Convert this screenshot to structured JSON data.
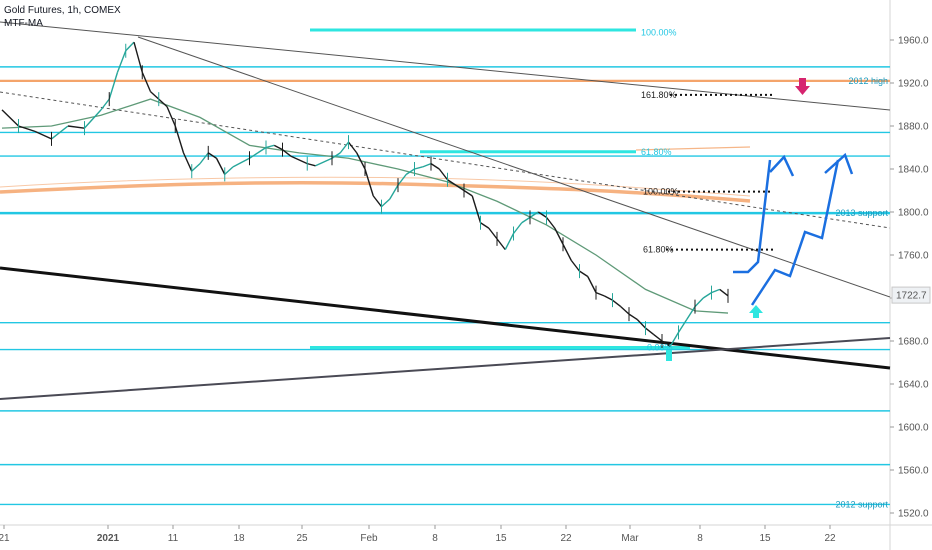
{
  "header": {
    "title": "Gold Futures, 1h, COMEX",
    "indicator": "MTF-MA"
  },
  "chart_data": {
    "type": "line",
    "title": "Gold Futures, 1h, COMEX",
    "ylim": [
      1504,
      1990
    ],
    "y_ticks": [
      1960,
      1920,
      1880,
      1840,
      1800,
      1760,
      1720,
      1680,
      1640,
      1600,
      1560,
      1520
    ],
    "x_ticks": [
      "21",
      "2021",
      "11",
      "18",
      "25",
      "Feb",
      "8",
      "15",
      "22",
      "Mar",
      "8",
      "15",
      "22"
    ],
    "last_price": "1722.7",
    "colors": {
      "cyan": "#22c7e3",
      "cyan_bright": "#2ee6e0",
      "orange": "#f4a46b",
      "blue_arrow": "#1b6fe0",
      "magenta": "#d6246f",
      "ma": "#5f9a78",
      "price_up": "#26a69a",
      "price_down": "#1b1b1b"
    },
    "horizontal_levels": [
      {
        "price": 1935,
        "color": "#22c7e3"
      },
      {
        "price": 1922,
        "color": "#f4a46b",
        "label": "2012 high"
      },
      {
        "price": 1874,
        "color": "#22c7e3"
      },
      {
        "price": 1852,
        "color": "#22c7e3"
      },
      {
        "price": 1799,
        "color": "#22c7e3",
        "label": "2013 support"
      },
      {
        "price": 1697,
        "color": "#22c7e3"
      },
      {
        "price": 1672,
        "color": "#22c7e3"
      },
      {
        "price": 1615,
        "color": "#22c7e3"
      },
      {
        "price": 1565,
        "color": "#22c7e3"
      },
      {
        "price": 1528,
        "color": "#22c7e3",
        "label": "2012 support"
      }
    ],
    "fib_labels": [
      {
        "text": "100.00%",
        "price": 1967
      },
      {
        "text": "61.80%",
        "price": 1856
      },
      {
        "text": "161.80%",
        "price": 1909
      },
      {
        "text": "100.00%",
        "price": 1819
      },
      {
        "text": "61.80%",
        "price": 1765
      },
      {
        "text": "0.00%",
        "price": 1674
      }
    ],
    "price_series": [
      [
        0,
        1895
      ],
      [
        2,
        1880
      ],
      [
        4,
        1875
      ],
      [
        6,
        1868
      ],
      [
        8,
        1880
      ],
      [
        10,
        1878
      ],
      [
        12,
        1895
      ],
      [
        13,
        1905
      ],
      [
        14,
        1930
      ],
      [
        15,
        1950
      ],
      [
        16,
        1958
      ],
      [
        17,
        1930
      ],
      [
        18,
        1912
      ],
      [
        19,
        1905
      ],
      [
        20,
        1898
      ],
      [
        21,
        1880
      ],
      [
        22,
        1855
      ],
      [
        23,
        1838
      ],
      [
        24,
        1845
      ],
      [
        25,
        1855
      ],
      [
        26,
        1850
      ],
      [
        27,
        1835
      ],
      [
        28,
        1842
      ],
      [
        30,
        1850
      ],
      [
        31,
        1855
      ],
      [
        32,
        1860
      ],
      [
        33,
        1862
      ],
      [
        34,
        1858
      ],
      [
        35,
        1852
      ],
      [
        37,
        1845
      ],
      [
        38,
        1843
      ],
      [
        40,
        1850
      ],
      [
        41,
        1855
      ],
      [
        42,
        1865
      ],
      [
        43,
        1855
      ],
      [
        44,
        1840
      ],
      [
        45,
        1815
      ],
      [
        46,
        1805
      ],
      [
        47,
        1812
      ],
      [
        48,
        1825
      ],
      [
        49,
        1835
      ],
      [
        50,
        1840
      ],
      [
        51,
        1842
      ],
      [
        52,
        1845
      ],
      [
        53,
        1840
      ],
      [
        54,
        1830
      ],
      [
        55,
        1825
      ],
      [
        56,
        1820
      ],
      [
        57,
        1815
      ],
      [
        58,
        1790
      ],
      [
        59,
        1785
      ],
      [
        60,
        1775
      ],
      [
        61,
        1765
      ],
      [
        62,
        1780
      ],
      [
        63,
        1790
      ],
      [
        64,
        1795
      ],
      [
        65,
        1800
      ],
      [
        66,
        1795
      ],
      [
        67,
        1785
      ],
      [
        68,
        1770
      ],
      [
        69,
        1755
      ],
      [
        70,
        1745
      ],
      [
        71,
        1740
      ],
      [
        72,
        1725
      ],
      [
        73,
        1722
      ],
      [
        74,
        1718
      ],
      [
        75,
        1712
      ],
      [
        76,
        1705
      ],
      [
        77,
        1700
      ],
      [
        78,
        1692
      ],
      [
        79,
        1686
      ],
      [
        80,
        1680
      ],
      [
        81,
        1675
      ],
      [
        82,
        1688
      ],
      [
        83,
        1700
      ],
      [
        84,
        1712
      ],
      [
        85,
        1720
      ],
      [
        86,
        1725
      ],
      [
        87,
        1728
      ],
      [
        88,
        1722
      ]
    ],
    "ma_series": [
      [
        0,
        1878
      ],
      [
        6,
        1880
      ],
      [
        12,
        1890
      ],
      [
        18,
        1905
      ],
      [
        24,
        1888
      ],
      [
        30,
        1862
      ],
      [
        36,
        1855
      ],
      [
        42,
        1850
      ],
      [
        48,
        1840
      ],
      [
        54,
        1828
      ],
      [
        60,
        1810
      ],
      [
        66,
        1788
      ],
      [
        72,
        1760
      ],
      [
        78,
        1728
      ],
      [
        84,
        1708
      ],
      [
        88,
        1706
      ]
    ]
  }
}
